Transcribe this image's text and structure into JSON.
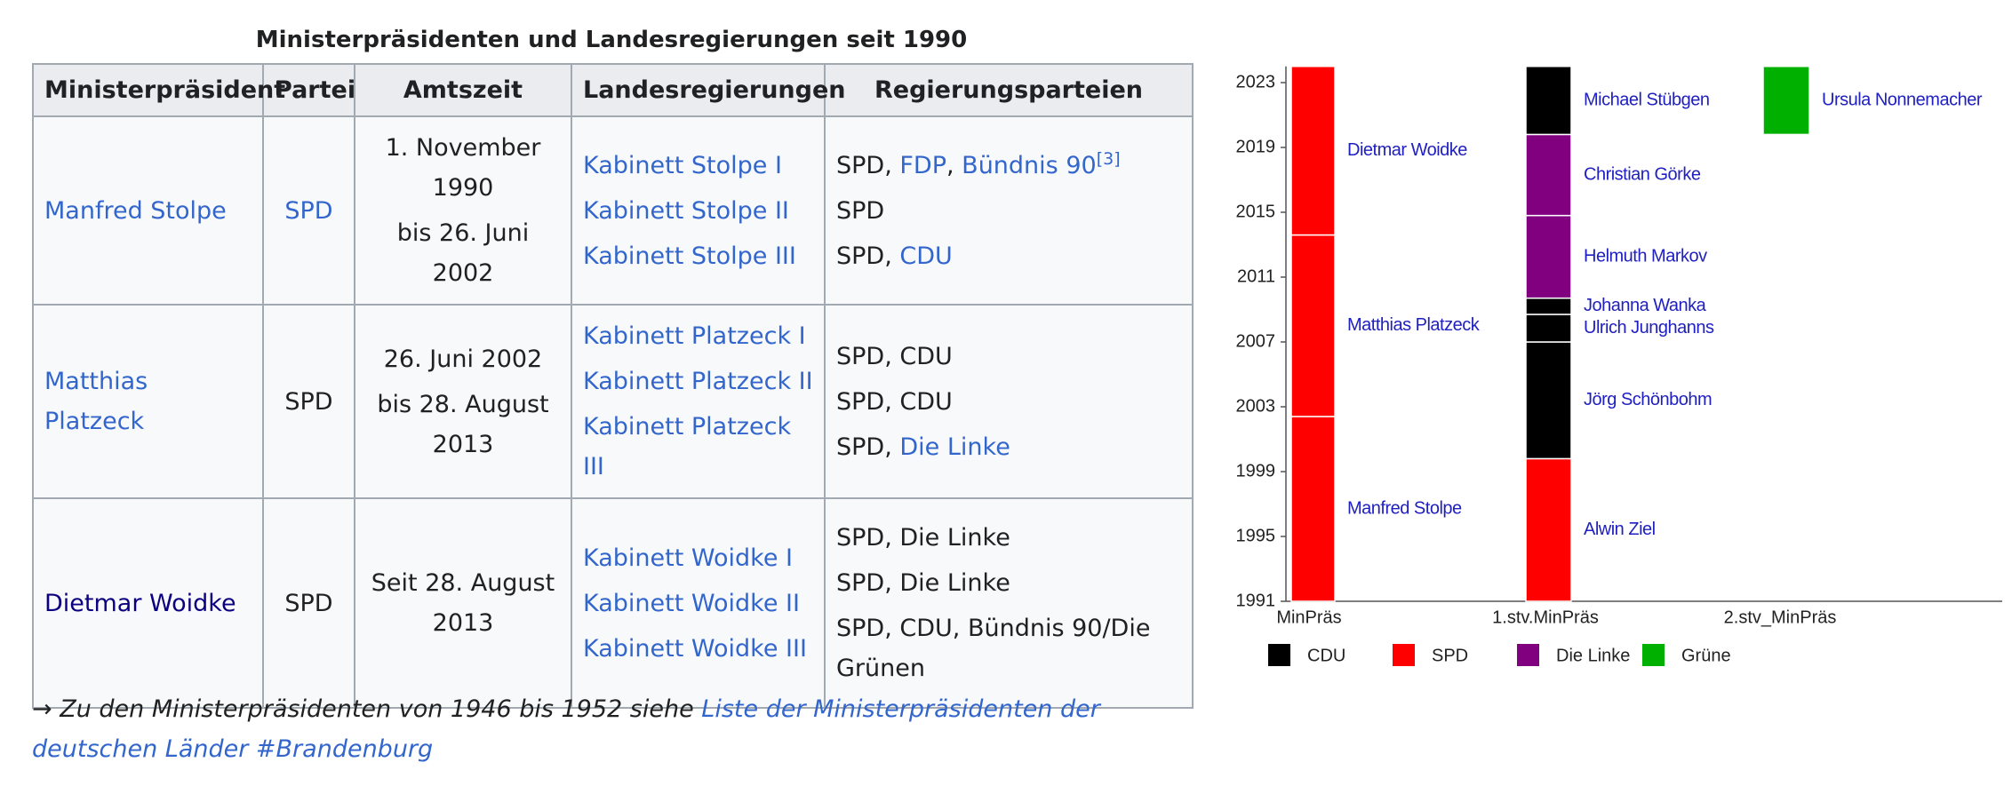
{
  "title": "Ministerpräsidenten und Landesregierungen seit 1990",
  "table": {
    "header": [
      "Ministerpräsident",
      "Partei",
      "Amtszeit",
      "Landesregierungen",
      "Regierungsparteien"
    ],
    "rows": [
      [
        [
          [
            {
              "text": "Manfred Stolpe",
              "style": "link"
            }
          ]
        ],
        [
          [
            {
              "text": "SPD",
              "style": "link"
            }
          ]
        ],
        [
          [
            {
              "text": "1. November 1990"
            }
          ],
          [
            {
              "text": "bis 26. Juni 2002"
            }
          ]
        ],
        [
          [
            {
              "text": "Kabinett Stolpe I",
              "style": "link"
            }
          ],
          [
            {
              "text": "Kabinett Stolpe II",
              "style": "link"
            }
          ],
          [
            {
              "text": "Kabinett Stolpe III",
              "style": "link"
            }
          ]
        ],
        [
          [
            {
              "text": "SPD, "
            },
            {
              "text": "FDP",
              "style": "link"
            },
            {
              "text": ", "
            },
            {
              "text": "Bündnis 90",
              "style": "link"
            },
            {
              "text": "[3]",
              "style": "sup"
            }
          ],
          [
            {
              "text": "SPD"
            }
          ],
          [
            {
              "text": "SPD, "
            },
            {
              "text": "CDU",
              "style": "link"
            }
          ]
        ]
      ],
      [
        [
          [
            {
              "text": "Matthias Platzeck",
              "style": "link"
            }
          ]
        ],
        [
          [
            {
              "text": "SPD"
            }
          ]
        ],
        [
          [
            {
              "text": "26. Juni 2002"
            }
          ],
          [
            {
              "text": "bis 28. August 2013"
            }
          ]
        ],
        [
          [
            {
              "text": "Kabinett Platzeck I",
              "style": "link"
            }
          ],
          [
            {
              "text": "Kabinett Platzeck II",
              "style": "link"
            }
          ],
          [
            {
              "text": "Kabinett Platzeck III",
              "style": "link"
            }
          ]
        ],
        [
          [
            {
              "text": "SPD, CDU"
            }
          ],
          [
            {
              "text": "SPD, CDU"
            }
          ],
          [
            {
              "text": "SPD, "
            },
            {
              "text": "Die Linke",
              "style": "link"
            }
          ]
        ]
      ],
      [
        [
          [
            {
              "text": "Dietmar Woidke",
              "style": "visited"
            }
          ]
        ],
        [
          [
            {
              "text": "SPD"
            }
          ]
        ],
        [
          [
            {
              "text": "Seit 28. August 2013"
            }
          ]
        ],
        [
          [
            {
              "text": "Kabinett Woidke I",
              "style": "link"
            }
          ],
          [
            {
              "text": "Kabinett Woidke II",
              "style": "link"
            }
          ],
          [
            {
              "text": "Kabinett Woidke III",
              "style": "link"
            }
          ]
        ],
        [
          [
            {
              "text": "SPD, Die Linke"
            }
          ],
          [
            {
              "text": "SPD, Die Linke"
            }
          ],
          [
            {
              "text": "SPD, CDU, Bündnis 90/Die Grünen"
            }
          ]
        ]
      ]
    ]
  },
  "footer": {
    "text": "→ Zu den Ministerpräsidenten von 1946 bis 1952 siehe ",
    "link": "Liste der Ministerpräsidenten der deutschen Länder #Brandenburg"
  },
  "timeline": {
    "ylim": [
      1991,
      2024
    ],
    "yticks": [
      1991,
      1995,
      1999,
      2003,
      2007,
      2011,
      2015,
      2019,
      2023
    ],
    "legend": [
      {
        "name": "CDU",
        "color": "#000000"
      },
      {
        "name": "SPD",
        "color": "#ff0000"
      },
      {
        "name": "Die Linke",
        "color": "#800080"
      },
      {
        "name": "Grüne",
        "color": "#00b000"
      }
    ],
    "columns": [
      {
        "label": "MinPräs",
        "bars": [
          {
            "name": "Manfred Stolpe",
            "party": "SPD",
            "from": 1991,
            "to": 2002.4
          },
          {
            "name": "Matthias Platzeck",
            "party": "SPD",
            "from": 2002.4,
            "to": 2013.6
          },
          {
            "name": "Dietmar Woidke",
            "party": "SPD",
            "from": 2013.6,
            "to": 2024
          }
        ]
      },
      {
        "label": "1.stv.MinPräs",
        "bars": [
          {
            "name": "Alwin Ziel",
            "party": "SPD",
            "from": 1991,
            "to": 1999.8
          },
          {
            "name": "Jörg Schönbohm",
            "party": "CDU",
            "from": 1999.8,
            "to": 2007.0
          },
          {
            "name": "Ulrich Junghanns",
            "party": "CDU",
            "from": 2007.0,
            "to": 2008.7
          },
          {
            "name": "Johanna Wanka",
            "party": "CDU",
            "from": 2008.7,
            "to": 2009.7
          },
          {
            "name": "Helmuth Markov",
            "party": "Die Linke",
            "from": 2009.7,
            "to": 2014.8
          },
          {
            "name": "Christian Görke",
            "party": "Die Linke",
            "from": 2014.8,
            "to": 2019.8
          },
          {
            "name": "Michael Stübgen",
            "party": "CDU",
            "from": 2019.8,
            "to": 2024
          }
        ]
      },
      {
        "label": "2.stv_MinPräs",
        "bars": [
          {
            "name": "Ursula Nonnemacher",
            "party": "Grüne",
            "from": 2019.8,
            "to": 2024
          }
        ]
      }
    ]
  }
}
